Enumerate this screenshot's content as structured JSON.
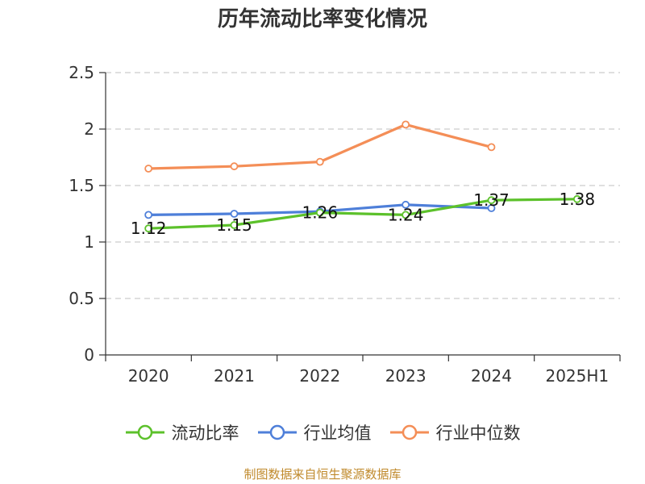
{
  "chart_data": {
    "type": "line",
    "title": "历年流动比率变化情况",
    "categories": [
      "2020",
      "2021",
      "2022",
      "2023",
      "2024",
      "2025H1"
    ],
    "ylim": [
      0,
      2.5
    ],
    "yticks": [
      "0",
      "0.5",
      "1",
      "1.5",
      "2",
      "2.5"
    ],
    "ytick_values": [
      0,
      0.5,
      1,
      1.5,
      2,
      2.5
    ],
    "grid": true,
    "legend_position": "bottom",
    "series": [
      {
        "name": "流动比率",
        "color": "#5cc12b",
        "values": [
          1.12,
          1.15,
          1.26,
          1.24,
          1.37,
          1.38
        ],
        "labels": [
          "1.12",
          "1.15",
          "1.26",
          "1.24",
          "1.37",
          "1.38"
        ]
      },
      {
        "name": "行业均值",
        "color": "#4e7fd9",
        "values": [
          1.24,
          1.25,
          1.27,
          1.33,
          1.3,
          null
        ]
      },
      {
        "name": "行业中位数",
        "color": "#f48e57",
        "values": [
          1.65,
          1.67,
          1.71,
          2.04,
          1.84,
          null
        ]
      }
    ],
    "source": "制图数据来自恒生聚源数据库"
  }
}
